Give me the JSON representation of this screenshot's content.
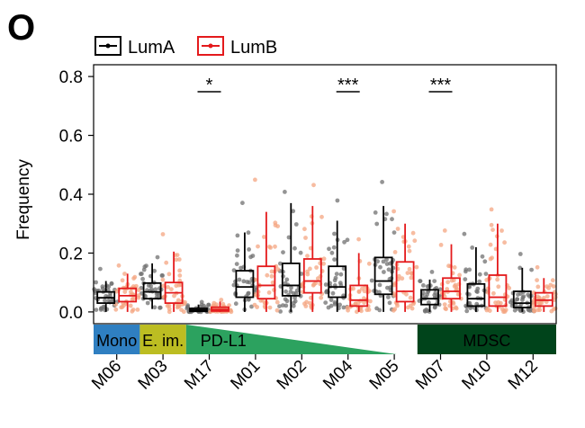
{
  "panel_label": "O",
  "chart_data": {
    "type": "box",
    "ylabel": "Frequency",
    "xlabel": "",
    "ylim": [
      -0.04,
      0.84
    ],
    "yticks": [
      0.0,
      0.2,
      0.4,
      0.6,
      0.8
    ],
    "ytick_labels": [
      "0.0",
      "0.2",
      "0.4",
      "0.6",
      "0.8"
    ],
    "categories": [
      "M06",
      "M03",
      "M17",
      "M01",
      "M02",
      "M04",
      "M05",
      "M07",
      "M10",
      "M12"
    ],
    "legend_position": "top",
    "series": [
      {
        "name": "LumA",
        "color": "#000000",
        "point_color": "#707070",
        "boxes": [
          {
            "q1": 0.03,
            "median": 0.048,
            "q3": 0.068,
            "whisker_low": 0.0,
            "whisker_high": 0.105
          },
          {
            "q1": 0.045,
            "median": 0.068,
            "q3": 0.098,
            "whisker_low": 0.01,
            "whisker_high": 0.165
          },
          {
            "q1": 0.002,
            "median": 0.006,
            "q3": 0.012,
            "whisker_low": 0.0,
            "whisker_high": 0.025
          },
          {
            "q1": 0.05,
            "median": 0.085,
            "q3": 0.14,
            "whisker_low": 0.0,
            "whisker_high": 0.27
          },
          {
            "q1": 0.055,
            "median": 0.09,
            "q3": 0.165,
            "whisker_low": 0.0,
            "whisker_high": 0.37
          },
          {
            "q1": 0.05,
            "median": 0.085,
            "q3": 0.155,
            "whisker_low": 0.0,
            "whisker_high": 0.31
          },
          {
            "q1": 0.06,
            "median": 0.105,
            "q3": 0.185,
            "whisker_low": 0.0,
            "whisker_high": 0.36
          },
          {
            "q1": 0.025,
            "median": 0.045,
            "q3": 0.075,
            "whisker_low": 0.0,
            "whisker_high": 0.11
          },
          {
            "q1": 0.02,
            "median": 0.045,
            "q3": 0.095,
            "whisker_low": 0.0,
            "whisker_high": 0.22
          },
          {
            "q1": 0.015,
            "median": 0.03,
            "q3": 0.07,
            "whisker_low": 0.0,
            "whisker_high": 0.15
          }
        ]
      },
      {
        "name": "LumB",
        "color": "#e41a1c",
        "point_color": "#f4a582",
        "boxes": [
          {
            "q1": 0.035,
            "median": 0.055,
            "q3": 0.08,
            "whisker_low": 0.0,
            "whisker_high": 0.13
          },
          {
            "q1": 0.03,
            "median": 0.065,
            "q3": 0.1,
            "whisker_low": 0.0,
            "whisker_high": 0.205
          },
          {
            "q1": 0.003,
            "median": 0.008,
            "q3": 0.016,
            "whisker_low": 0.0,
            "whisker_high": 0.035
          },
          {
            "q1": 0.045,
            "median": 0.09,
            "q3": 0.155,
            "whisker_low": 0.0,
            "whisker_high": 0.34
          },
          {
            "q1": 0.065,
            "median": 0.105,
            "q3": 0.18,
            "whisker_low": 0.0,
            "whisker_high": 0.36
          },
          {
            "q1": 0.02,
            "median": 0.04,
            "q3": 0.09,
            "whisker_low": 0.0,
            "whisker_high": 0.2
          },
          {
            "q1": 0.035,
            "median": 0.07,
            "q3": 0.17,
            "whisker_low": 0.0,
            "whisker_high": 0.3
          },
          {
            "q1": 0.045,
            "median": 0.07,
            "q3": 0.115,
            "whisker_low": 0.0,
            "whisker_high": 0.23
          },
          {
            "q1": 0.02,
            "median": 0.05,
            "q3": 0.125,
            "whisker_low": 0.0,
            "whisker_high": 0.3
          },
          {
            "q1": 0.02,
            "median": 0.04,
            "q3": 0.065,
            "whisker_low": 0.0,
            "whisker_high": 0.115
          }
        ]
      }
    ],
    "annotations": [
      {
        "category": "M17",
        "text": "*"
      },
      {
        "category": "M04",
        "text": "***"
      },
      {
        "category": "M07",
        "text": "***"
      }
    ],
    "category_groups": [
      {
        "label": "Mono",
        "from": "M06",
        "to": "M06",
        "color": "#2f7fc1",
        "shape": "rect"
      },
      {
        "label": "E. im.",
        "from": "M03",
        "to": "M03",
        "color": "#bcbd22",
        "shape": "rect"
      },
      {
        "label": "PD-L1",
        "from": "M17",
        "to": "M05",
        "color": "#2ca25f",
        "shape": "wedge"
      },
      {
        "label": "MDSC",
        "from": "M07",
        "to": "M12",
        "color": "#00441b",
        "shape": "rect"
      }
    ]
  }
}
